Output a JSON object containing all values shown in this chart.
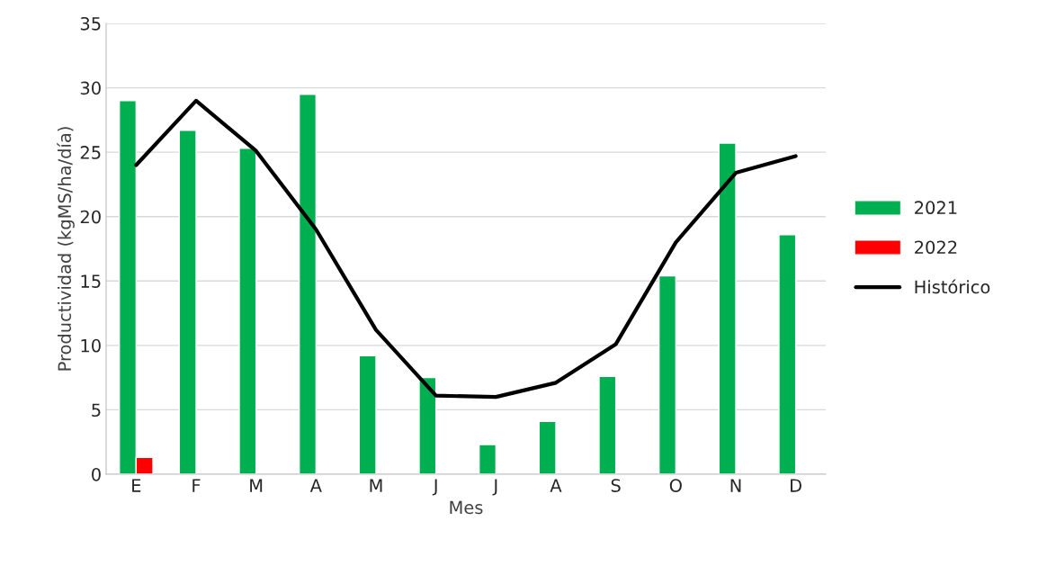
{
  "chart_data": {
    "type": "bar",
    "xlabel": "Mes",
    "ylabel": "Productividad (kgMS/ha/día)",
    "categories": [
      "E",
      "F",
      "M",
      "A",
      "M",
      "J",
      "J",
      "A",
      "S",
      "O",
      "N",
      "D"
    ],
    "series": [
      {
        "name": "2021",
        "color": "#00b050",
        "values": [
          29.0,
          26.7,
          25.3,
          29.5,
          9.2,
          7.5,
          2.3,
          4.1,
          7.6,
          15.4,
          25.7,
          18.6
        ]
      },
      {
        "name": "2022",
        "color": "#ff0000",
        "values": [
          1.3,
          null,
          null,
          null,
          null,
          null,
          null,
          null,
          null,
          null,
          null,
          null
        ]
      },
      {
        "name": "Histórico",
        "type": "line",
        "color": "#000000",
        "values": [
          24.0,
          29.0,
          25.1,
          19.0,
          11.2,
          6.1,
          6.0,
          7.1,
          10.1,
          18.0,
          23.4,
          24.7
        ]
      }
    ],
    "ylim": [
      0,
      35
    ],
    "yticks": [
      0,
      5,
      10,
      15,
      20,
      25,
      30,
      35
    ],
    "grid": "y",
    "legend": "right",
    "marker": "none",
    "line_style": "solid"
  }
}
